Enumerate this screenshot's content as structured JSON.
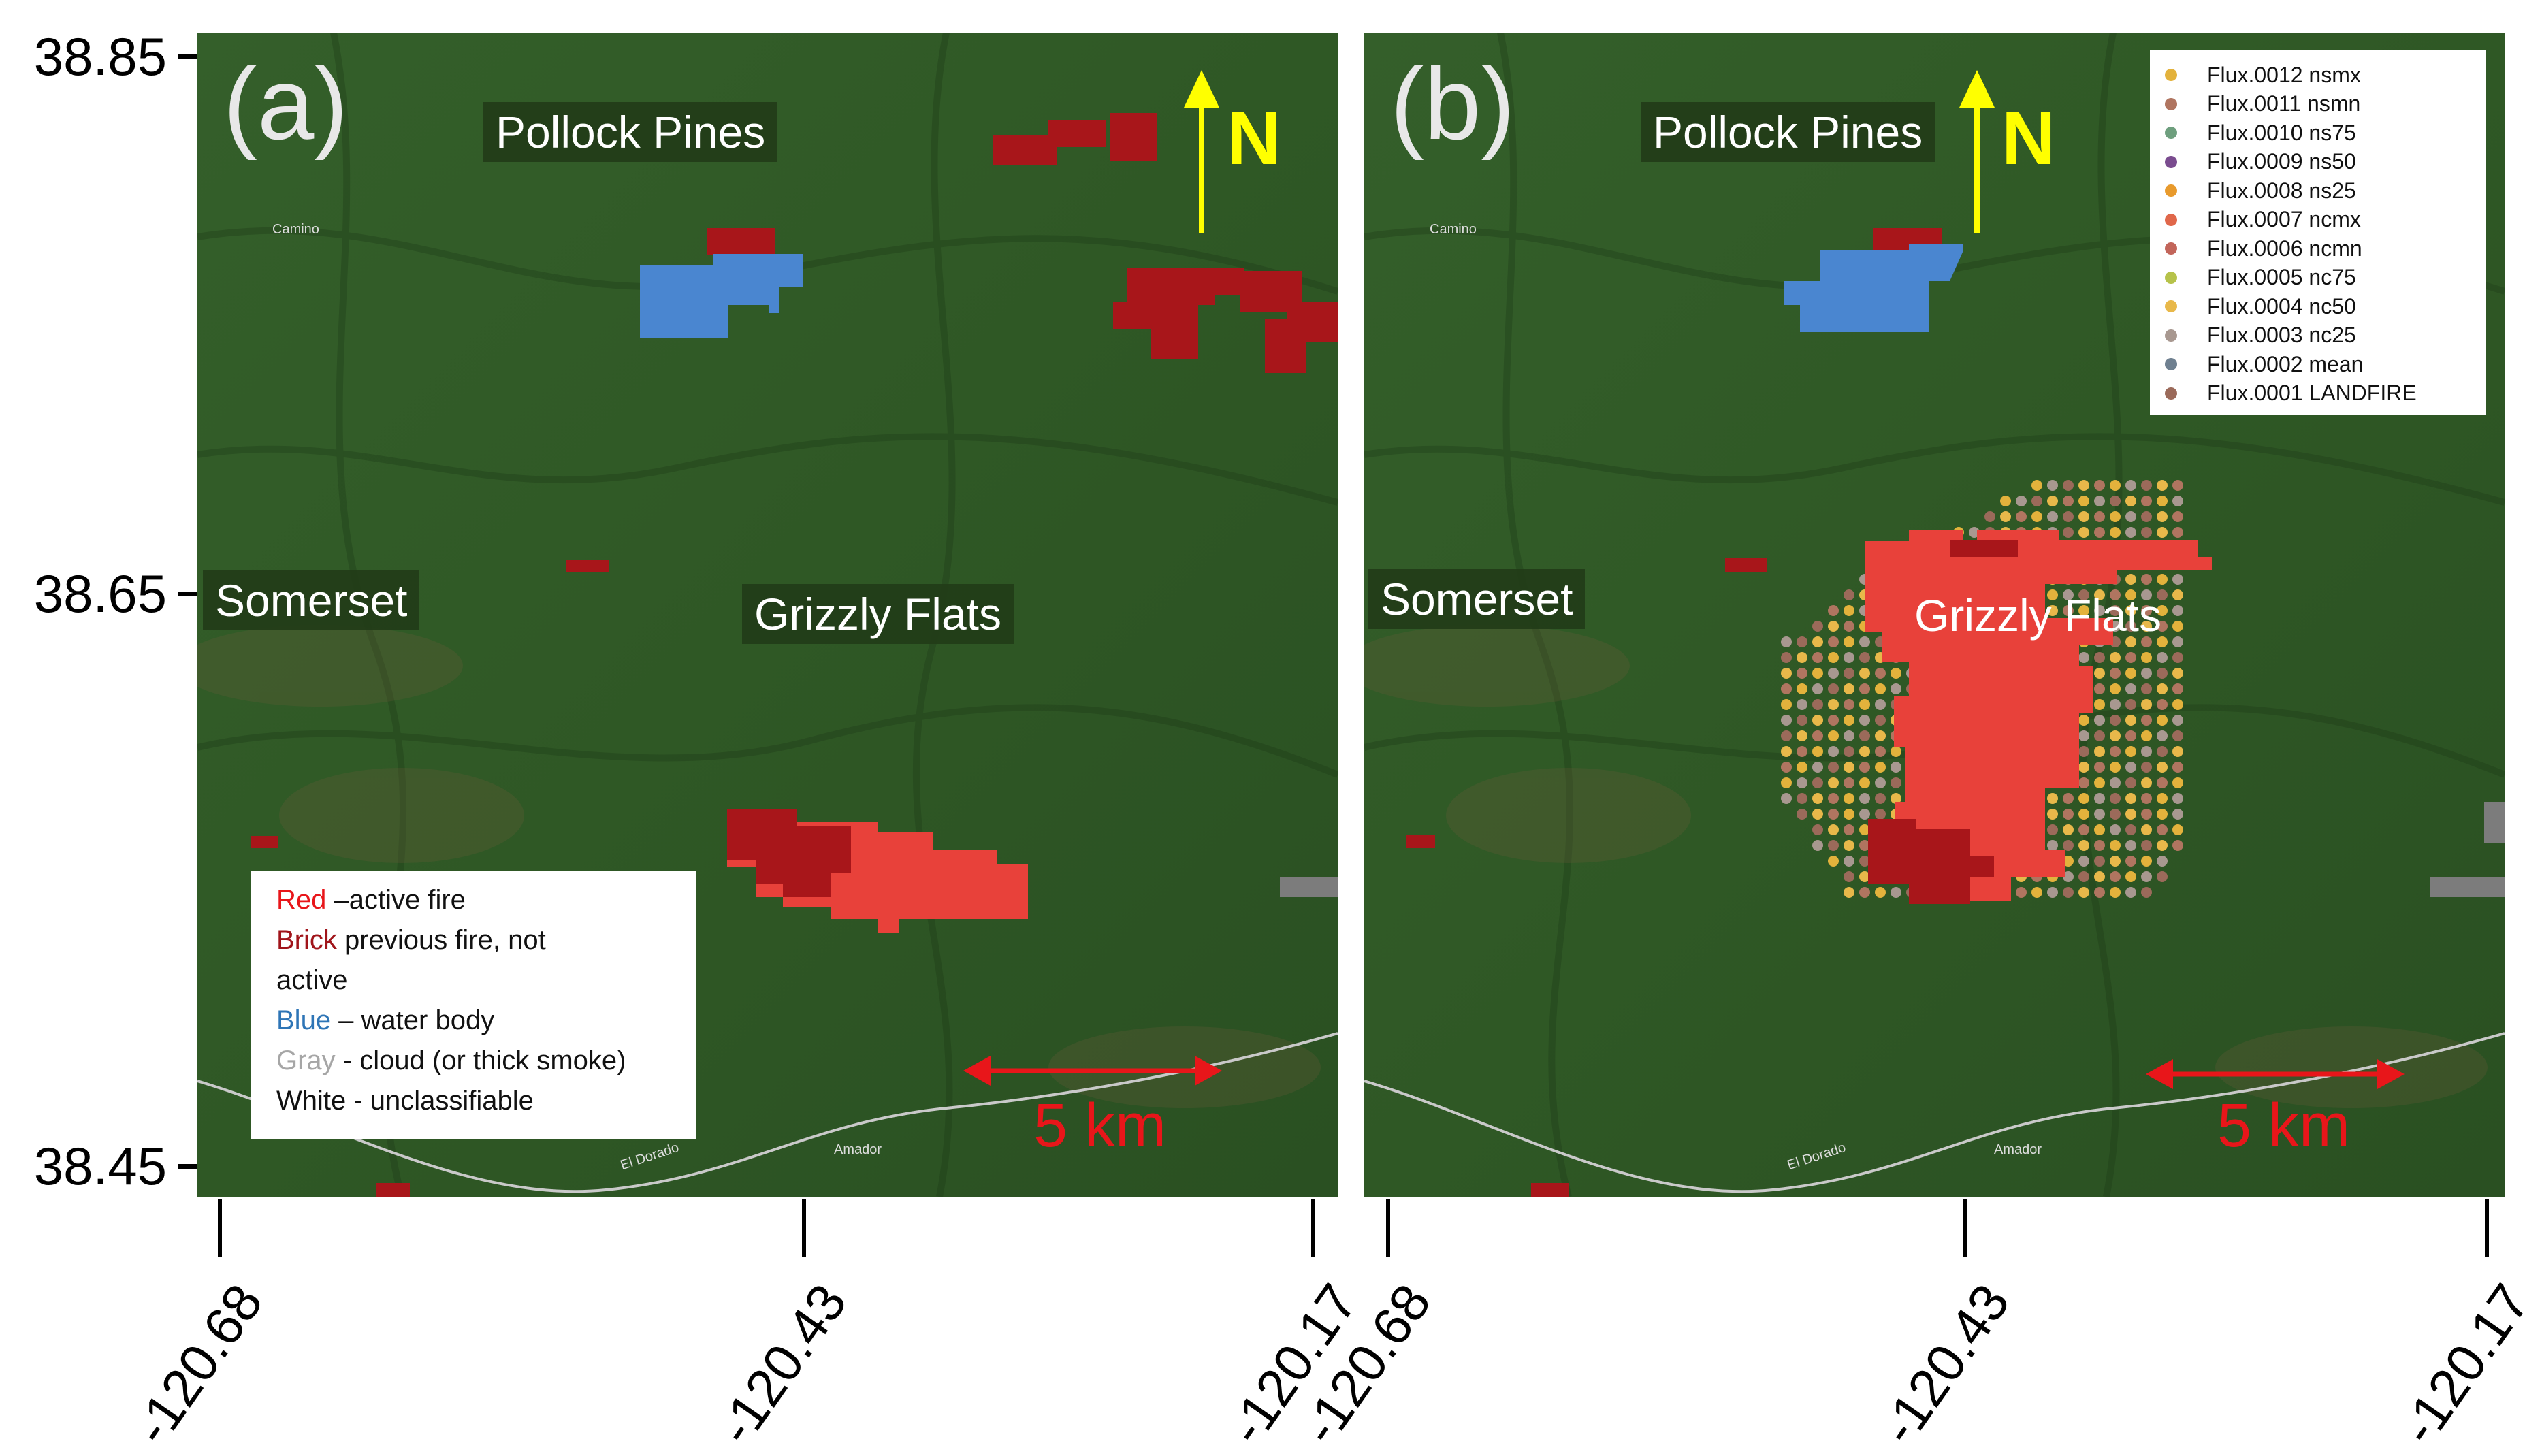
{
  "y_axis": {
    "ticks": [
      "38.85",
      "38.65",
      "38.45"
    ]
  },
  "x_axis": {
    "ticks": [
      "-120.68",
      "-120.43",
      "-120.17"
    ]
  },
  "panels": [
    {
      "label": "(a)",
      "places": {
        "pollock_pines": "Pollock Pines",
        "somerset": "Somerset",
        "grizzly_flats": "Grizzly Flats"
      },
      "north": "N",
      "scale": "5 km",
      "road_labels": {
        "camino": "Camino",
        "el_dorado": "El Dorado",
        "amador": "Amador"
      },
      "legend": [
        {
          "color_word": "Red",
          "color": "#e8161a",
          "text": " –active fire"
        },
        {
          "color_word": "Brick",
          "color": "#a0141a",
          "text": " previous fire, not"
        },
        {
          "color_word": "",
          "color": "#111111",
          "text": "active"
        },
        {
          "color_word": "Blue",
          "color": "#2e75b6",
          "text": " – water body"
        },
        {
          "color_word": "Gray",
          "color": "#a6a6a6",
          "text": " - cloud (or thick smoke)"
        },
        {
          "color_word": "",
          "color": "#111111",
          "text": "White - unclassifiable"
        }
      ]
    },
    {
      "label": "(b)",
      "places": {
        "pollock_pines": "Pollock Pines",
        "somerset": "Somerset",
        "grizzly_flats": "Grizzly Flats"
      },
      "north": "N",
      "scale": "5 km",
      "road_labels": {
        "camino": "Camino",
        "el_dorado": "El Dorado",
        "amador": "Amador"
      },
      "legend": [
        {
          "name": "Flux.0012 nsmx",
          "color": "#e3b23c"
        },
        {
          "name": "Flux.0011 nsmn",
          "color": "#b07560"
        },
        {
          "name": "Flux.0010 ns75",
          "color": "#6e9f7e"
        },
        {
          "name": "Flux.0009 ns50",
          "color": "#7a4c8f"
        },
        {
          "name": "Flux.0008 ns25",
          "color": "#e89a2c"
        },
        {
          "name": "Flux.0007 ncmx",
          "color": "#e0674a"
        },
        {
          "name": "Flux.0006 ncmn",
          "color": "#c2655a"
        },
        {
          "name": "Flux.0005 nc75",
          "color": "#b6c24a"
        },
        {
          "name": "Flux.0004 nc50",
          "color": "#e8b84a"
        },
        {
          "name": "Flux.0003 nc25",
          "color": "#a89890"
        },
        {
          "name": "Flux.0002 mean",
          "color": "#6f8090"
        },
        {
          "name": "Flux.0001 LANDFIRE",
          "color": "#9b6a5a"
        }
      ]
    }
  ],
  "colors": {
    "active_fire": "#e8413a",
    "previous_fire": "#a8161a",
    "water": "#4a86d0",
    "cloud": "#7c7c7c",
    "north": "#ffff00",
    "scale_bar": "#e8161a"
  }
}
